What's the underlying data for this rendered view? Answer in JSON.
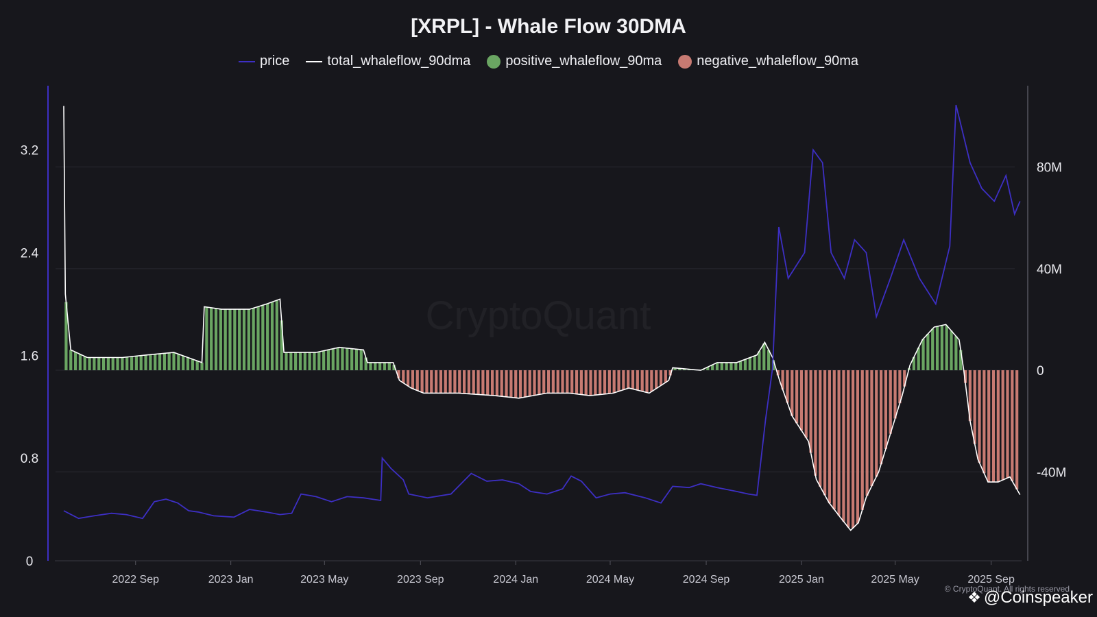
{
  "chart_data": {
    "type": "area",
    "title": "[XRPL] - Whale Flow 30DMA",
    "legend_position": "top-center",
    "grid": true,
    "colors": {
      "price": "#3d2fc4",
      "total_whaleflow_90dma": "#ffffff",
      "positive_whaleflow_90ma": "#6aa562",
      "negative_whaleflow_90ma": "#c77a72"
    },
    "x_ticks": [
      "2022 Sep",
      "2023 Jan",
      "2023 May",
      "2023 Sep",
      "2024 Jan",
      "2024 May",
      "2024 Sep",
      "2025 Jan",
      "2025 May",
      "2025 Sep"
    ],
    "x_range": [
      "2022-06-01",
      "2025-10-10"
    ],
    "y_left": {
      "ticks": [
        "0",
        "0.8",
        "1.6",
        "2.4",
        "3.2"
      ],
      "range": [
        0,
        3.7
      ]
    },
    "y_right": {
      "ticks": [
        "80M",
        "40M",
        "0",
        "-40M"
      ],
      "range": [
        -75,
        112
      ],
      "unit": "M"
    },
    "series": [
      {
        "name": "price",
        "axis": "left",
        "points": [
          [
            "2022-06-01",
            0.39
          ],
          [
            "2022-06-20",
            0.33
          ],
          [
            "2022-07-10",
            0.35
          ],
          [
            "2022-08-01",
            0.37
          ],
          [
            "2022-08-20",
            0.36
          ],
          [
            "2022-09-10",
            0.33
          ],
          [
            "2022-09-25",
            0.46
          ],
          [
            "2022-10-10",
            0.48
          ],
          [
            "2022-10-25",
            0.45
          ],
          [
            "2022-11-08",
            0.39
          ],
          [
            "2022-11-20",
            0.38
          ],
          [
            "2022-12-10",
            0.35
          ],
          [
            "2023-01-05",
            0.34
          ],
          [
            "2023-01-25",
            0.4
          ],
          [
            "2023-02-15",
            0.38
          ],
          [
            "2023-03-05",
            0.36
          ],
          [
            "2023-03-20",
            0.37
          ],
          [
            "2023-04-01",
            0.52
          ],
          [
            "2023-04-20",
            0.5
          ],
          [
            "2023-05-10",
            0.46
          ],
          [
            "2023-05-30",
            0.5
          ],
          [
            "2023-06-20",
            0.49
          ],
          [
            "2023-07-12",
            0.47
          ],
          [
            "2023-07-14",
            0.8
          ],
          [
            "2023-07-25",
            0.72
          ],
          [
            "2023-08-10",
            0.63
          ],
          [
            "2023-08-17",
            0.52
          ],
          [
            "2023-09-10",
            0.49
          ],
          [
            "2023-10-10",
            0.52
          ],
          [
            "2023-11-05",
            0.68
          ],
          [
            "2023-11-25",
            0.62
          ],
          [
            "2023-12-15",
            0.63
          ],
          [
            "2024-01-05",
            0.6
          ],
          [
            "2024-01-20",
            0.54
          ],
          [
            "2024-02-10",
            0.52
          ],
          [
            "2024-03-01",
            0.56
          ],
          [
            "2024-03-12",
            0.66
          ],
          [
            "2024-03-25",
            0.62
          ],
          [
            "2024-04-13",
            0.49
          ],
          [
            "2024-05-01",
            0.52
          ],
          [
            "2024-05-20",
            0.53
          ],
          [
            "2024-06-15",
            0.49
          ],
          [
            "2024-07-05",
            0.45
          ],
          [
            "2024-07-20",
            0.58
          ],
          [
            "2024-08-10",
            0.57
          ],
          [
            "2024-08-25",
            0.6
          ],
          [
            "2024-09-15",
            0.57
          ],
          [
            "2024-10-10",
            0.54
          ],
          [
            "2024-10-25",
            0.52
          ],
          [
            "2024-11-05",
            0.51
          ],
          [
            "2024-11-16",
            1.1
          ],
          [
            "2024-11-25",
            1.5
          ],
          [
            "2024-12-03",
            2.6
          ],
          [
            "2024-12-15",
            2.2
          ],
          [
            "2025-01-05",
            2.4
          ],
          [
            "2025-01-16",
            3.2
          ],
          [
            "2025-01-28",
            3.1
          ],
          [
            "2025-02-08",
            2.4
          ],
          [
            "2025-02-25",
            2.2
          ],
          [
            "2025-03-10",
            2.5
          ],
          [
            "2025-03-25",
            2.4
          ],
          [
            "2025-04-07",
            1.9
          ],
          [
            "2025-04-25",
            2.2
          ],
          [
            "2025-05-12",
            2.5
          ],
          [
            "2025-06-01",
            2.2
          ],
          [
            "2025-06-22",
            2.0
          ],
          [
            "2025-07-10",
            2.45
          ],
          [
            "2025-07-18",
            3.55
          ],
          [
            "2025-08-05",
            3.1
          ],
          [
            "2025-08-20",
            2.9
          ],
          [
            "2025-09-05",
            2.8
          ],
          [
            "2025-09-20",
            3.0
          ],
          [
            "2025-10-01",
            2.7
          ],
          [
            "2025-10-08",
            2.8
          ]
        ]
      },
      {
        "name": "total_whaleflow_90dma",
        "axis": "right",
        "points": [
          [
            "2022-06-01",
            104
          ],
          [
            "2022-06-03",
            30
          ],
          [
            "2022-06-10",
            8
          ],
          [
            "2022-07-01",
            5
          ],
          [
            "2022-08-15",
            5
          ],
          [
            "2022-09-15",
            6
          ],
          [
            "2022-10-20",
            7
          ],
          [
            "2022-11-25",
            3
          ],
          [
            "2022-11-28",
            25
          ],
          [
            "2022-12-20",
            24
          ],
          [
            "2023-01-25",
            24
          ],
          [
            "2023-02-15",
            26
          ],
          [
            "2023-03-05",
            28
          ],
          [
            "2023-03-10",
            7
          ],
          [
            "2023-04-20",
            7
          ],
          [
            "2023-05-20",
            9
          ],
          [
            "2023-06-20",
            8
          ],
          [
            "2023-06-25",
            3
          ],
          [
            "2023-07-28",
            3
          ],
          [
            "2023-08-05",
            -4
          ],
          [
            "2023-08-20",
            -7
          ],
          [
            "2023-09-05",
            -9
          ],
          [
            "2023-10-20",
            -9
          ],
          [
            "2023-12-05",
            -10
          ],
          [
            "2024-01-05",
            -11
          ],
          [
            "2024-02-10",
            -9
          ],
          [
            "2024-03-10",
            -9
          ],
          [
            "2024-04-05",
            -10
          ],
          [
            "2024-05-05",
            -9
          ],
          [
            "2024-05-25",
            -7
          ],
          [
            "2024-06-20",
            -9
          ],
          [
            "2024-07-15",
            -4
          ],
          [
            "2024-07-20",
            1
          ],
          [
            "2024-08-25",
            0
          ],
          [
            "2024-09-15",
            3
          ],
          [
            "2024-10-10",
            3
          ],
          [
            "2024-11-05",
            6
          ],
          [
            "2024-11-15",
            11
          ],
          [
            "2024-11-25",
            5
          ],
          [
            "2024-12-05",
            -5
          ],
          [
            "2024-12-20",
            -18
          ],
          [
            "2025-01-10",
            -28
          ],
          [
            "2025-01-20",
            -43
          ],
          [
            "2025-02-05",
            -52
          ],
          [
            "2025-02-20",
            -58
          ],
          [
            "2025-03-05",
            -63
          ],
          [
            "2025-03-15",
            -60
          ],
          [
            "2025-03-25",
            -50
          ],
          [
            "2025-04-10",
            -40
          ],
          [
            "2025-04-25",
            -25
          ],
          [
            "2025-05-10",
            -10
          ],
          [
            "2025-05-20",
            2
          ],
          [
            "2025-06-05",
            12
          ],
          [
            "2025-06-20",
            17
          ],
          [
            "2025-07-05",
            18
          ],
          [
            "2025-07-22",
            12
          ],
          [
            "2025-07-28",
            0
          ],
          [
            "2025-08-05",
            -20
          ],
          [
            "2025-08-15",
            -35
          ],
          [
            "2025-08-28",
            -44
          ],
          [
            "2025-09-10",
            -44
          ],
          [
            "2025-09-25",
            -42
          ],
          [
            "2025-10-08",
            -49
          ]
        ]
      },
      {
        "name": "positive_whaleflow_90ma",
        "axis": "right",
        "derived_from": "total_whaleflow_90dma (values above 0)"
      },
      {
        "name": "negative_whaleflow_90ma",
        "axis": "right",
        "derived_from": "total_whaleflow_90dma (values below 0)"
      }
    ],
    "watermark": "CryptoQuant"
  },
  "legend": {
    "price": "price",
    "total": "total_whaleflow_90dma",
    "positive": "positive_whaleflow_90ma",
    "negative": "negative_whaleflow_90ma"
  },
  "footer": {
    "credit": "© CryptoQuant. All rights reserved",
    "brand": "@Coinspeaker",
    "brand_icon": "coinspeaker-logo-icon"
  }
}
